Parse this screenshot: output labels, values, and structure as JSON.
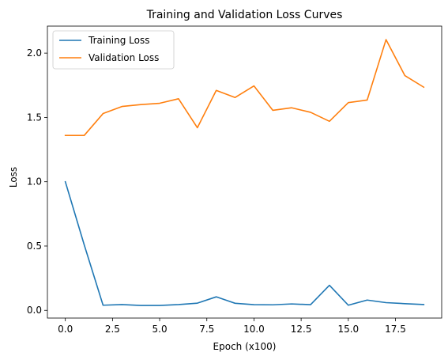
{
  "chart_data": {
    "type": "line",
    "title": "Training and Validation Loss Curves",
    "xlabel": "Epoch (x100)",
    "ylabel": "Loss",
    "xlim": [
      -0.95,
      19.95
    ],
    "ylim": [
      -0.06,
      2.21
    ],
    "x_ticks": [
      0.0,
      2.5,
      5.0,
      7.5,
      10.0,
      12.5,
      15.0,
      17.5
    ],
    "x_tick_labels": [
      "0.0",
      "2.5",
      "5.0",
      "7.5",
      "10.0",
      "12.5",
      "15.0",
      "17.5"
    ],
    "y_ticks": [
      0.0,
      0.5,
      1.0,
      1.5,
      2.0
    ],
    "y_tick_labels": [
      "0.0",
      "0.5",
      "1.0",
      "1.5",
      "2.0"
    ],
    "grid": false,
    "legend_position": "top-left",
    "x": [
      0,
      1,
      2,
      3,
      4,
      5,
      6,
      7,
      8,
      9,
      10,
      11,
      12,
      13,
      14,
      15,
      16,
      17,
      18,
      19
    ],
    "series": [
      {
        "name": "Training Loss",
        "color": "#1f77b4",
        "values": [
          1.0,
          0.51,
          0.04,
          0.045,
          0.038,
          0.038,
          0.045,
          0.056,
          0.105,
          0.055,
          0.044,
          0.043,
          0.05,
          0.044,
          0.195,
          0.04,
          0.08,
          0.06,
          0.052,
          0.045
        ]
      },
      {
        "name": "Validation Loss",
        "color": "#ff7f0e",
        "values": [
          1.36,
          1.36,
          1.53,
          1.585,
          1.6,
          1.61,
          1.645,
          1.42,
          1.71,
          1.655,
          1.745,
          1.555,
          1.575,
          1.54,
          1.47,
          1.615,
          1.635,
          2.105,
          1.825,
          1.735
        ]
      }
    ]
  }
}
